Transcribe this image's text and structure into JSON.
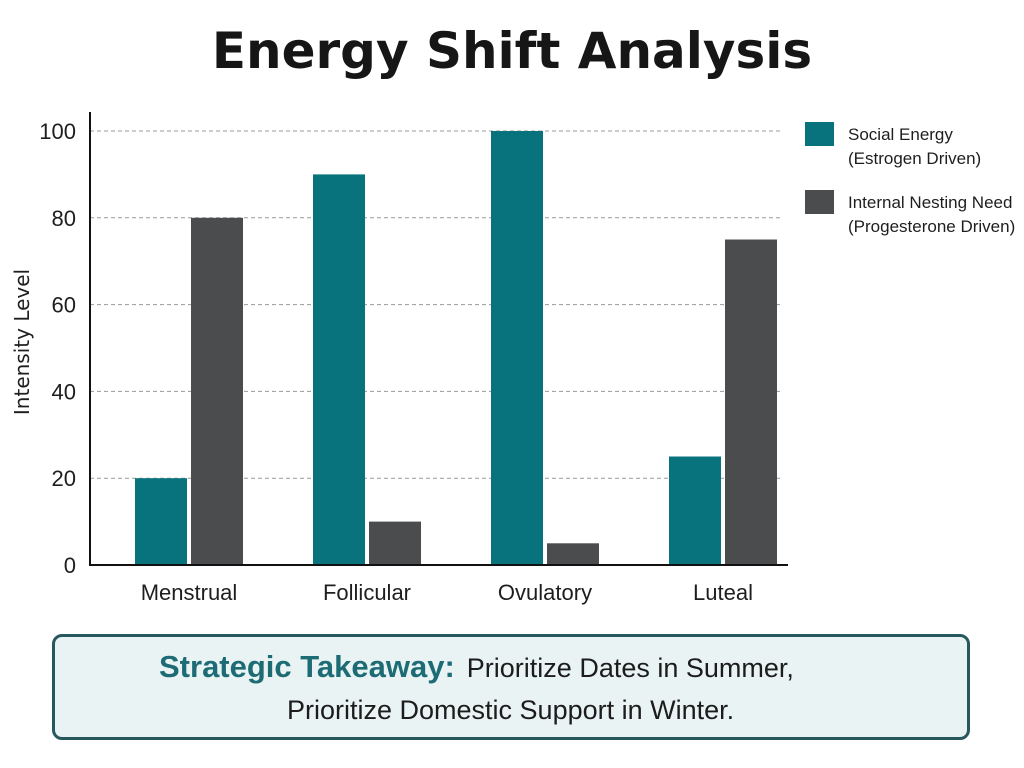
{
  "chart_data": {
    "type": "bar",
    "title": "Energy Shift Analysis",
    "xlabel": "",
    "ylabel": "Intensity Level",
    "categories": [
      "Menstrual",
      "Follicular",
      "Ovulatory",
      "Luteal"
    ],
    "series": [
      {
        "name": "Social Energy (Estrogen Driven)",
        "legend_lines": [
          "Social Energy",
          "(Estrogen Driven)"
        ],
        "color": "#08737d",
        "values": [
          20,
          90,
          100,
          25
        ]
      },
      {
        "name": "Internal Nesting Need (Progesterone Driven)",
        "legend_lines": [
          "Internal Nesting Need",
          "(Progesterone Driven)"
        ],
        "color": "#4b4c4e",
        "values": [
          80,
          10,
          5,
          75
        ]
      }
    ],
    "ylim": [
      0,
      100
    ],
    "yticks": [
      0,
      20,
      40,
      60,
      80,
      100
    ],
    "grid": true,
    "legend_position": "right"
  },
  "takeaway": {
    "label": "Strategic Takeaway:",
    "line1": "Prioritize Dates in Summer,",
    "line2": "Prioritize Domestic Support in Winter."
  }
}
